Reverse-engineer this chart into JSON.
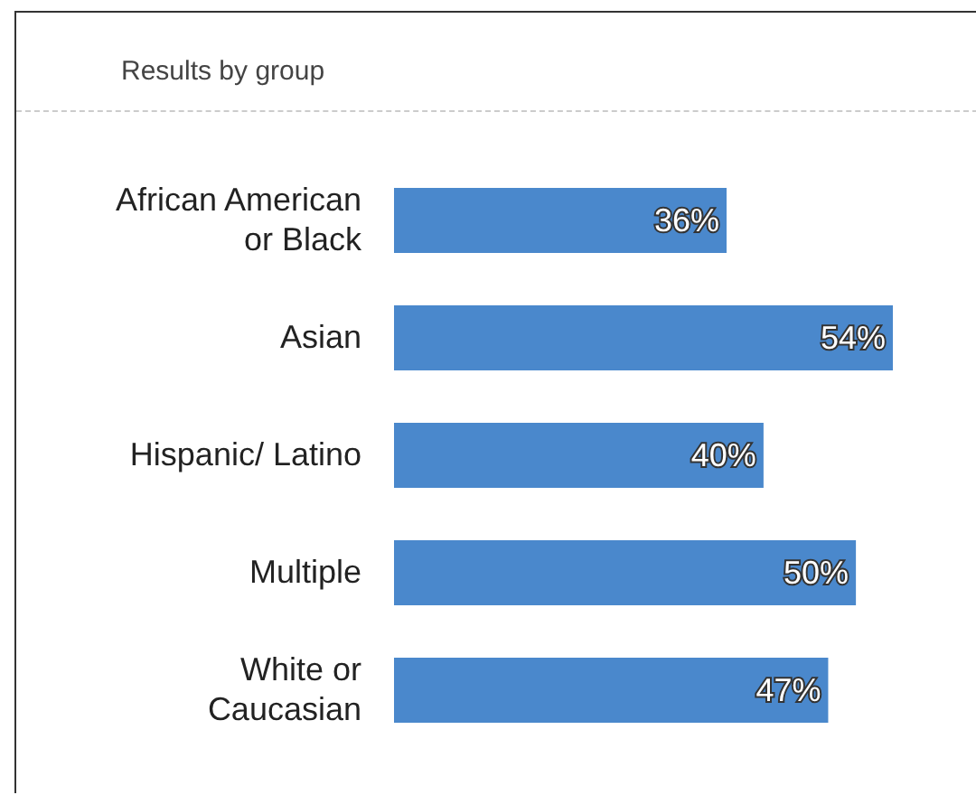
{
  "chart_data": {
    "type": "bar",
    "title": "Results by group",
    "categories": [
      "African American or Black",
      "Asian",
      "Hispanic/ Latino",
      "Multiple",
      "White or Caucasian"
    ],
    "values": [
      36,
      54,
      40,
      50,
      47
    ],
    "value_labels": [
      "36%",
      "54%",
      "40%",
      "50%",
      "47%"
    ],
    "color": "#4a88cc",
    "orientation": "horizontal",
    "grid": false,
    "legend": false
  }
}
